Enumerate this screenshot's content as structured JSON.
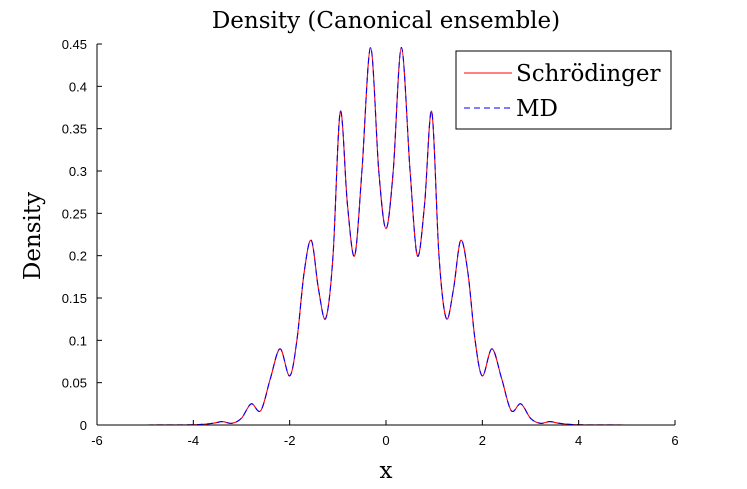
{
  "chart_data": {
    "type": "line",
    "title": "Density (Canonical ensemble)",
    "xlabel": "x",
    "ylabel": "Density",
    "xlim": [
      -6,
      6
    ],
    "ylim": [
      0,
      0.45
    ],
    "xticks": [
      "-6",
      "-4",
      "-2",
      "0",
      "2",
      "4",
      "6"
    ],
    "yticks": [
      "0",
      "0.05",
      "0.1",
      "0.15",
      "0.2",
      "0.25",
      "0.3",
      "0.35",
      "0.4",
      "0.45"
    ],
    "legend_position": "top-right",
    "series": [
      {
        "name": "Schrödinger",
        "color": "#ff0000",
        "style": "solid",
        "x": [
          -6,
          -5,
          -4,
          -3.6,
          -3.4,
          -3.2,
          -3.0,
          -2.8,
          -2.6,
          -2.4,
          -2.2,
          -2.0,
          -1.85,
          -1.7,
          -1.55,
          -1.4,
          -1.25,
          -1.1,
          -0.95,
          -0.8,
          -0.65,
          -0.5,
          -0.32,
          -0.15,
          0,
          0.15,
          0.32,
          0.5,
          0.65,
          0.8,
          0.95,
          1.1,
          1.25,
          1.4,
          1.55,
          1.7,
          1.85,
          2.0,
          2.2,
          2.4,
          2.6,
          2.8,
          3.0,
          3.2,
          3.4,
          3.6,
          4,
          5,
          6
        ],
        "y": [
          0,
          0,
          0.0003,
          0.002,
          0.004,
          0.002,
          0.008,
          0.025,
          0.017,
          0.055,
          0.09,
          0.058,
          0.1,
          0.18,
          0.218,
          0.16,
          0.126,
          0.2,
          0.37,
          0.26,
          0.2,
          0.3,
          0.446,
          0.3,
          0.232,
          0.3,
          0.446,
          0.3,
          0.2,
          0.26,
          0.37,
          0.2,
          0.126,
          0.16,
          0.218,
          0.18,
          0.1,
          0.058,
          0.09,
          0.055,
          0.017,
          0.025,
          0.008,
          0.002,
          0.004,
          0.002,
          0.0003,
          0,
          0
        ]
      },
      {
        "name": "MD",
        "color": "#0000ff",
        "style": "dashed",
        "x": [
          -6,
          -5,
          -4,
          -3.6,
          -3.4,
          -3.2,
          -3.0,
          -2.8,
          -2.6,
          -2.4,
          -2.2,
          -2.0,
          -1.85,
          -1.7,
          -1.55,
          -1.4,
          -1.25,
          -1.1,
          -0.95,
          -0.8,
          -0.65,
          -0.5,
          -0.32,
          -0.15,
          0,
          0.15,
          0.32,
          0.5,
          0.65,
          0.8,
          0.95,
          1.1,
          1.25,
          1.4,
          1.55,
          1.7,
          1.85,
          2.0,
          2.2,
          2.4,
          2.6,
          2.8,
          3.0,
          3.2,
          3.4,
          3.6,
          4,
          5,
          6
        ],
        "y": [
          0,
          0,
          0.0003,
          0.002,
          0.004,
          0.002,
          0.008,
          0.025,
          0.017,
          0.055,
          0.09,
          0.058,
          0.1,
          0.18,
          0.218,
          0.16,
          0.126,
          0.2,
          0.37,
          0.26,
          0.2,
          0.3,
          0.446,
          0.3,
          0.232,
          0.3,
          0.446,
          0.3,
          0.2,
          0.26,
          0.37,
          0.2,
          0.126,
          0.16,
          0.218,
          0.18,
          0.1,
          0.058,
          0.09,
          0.055,
          0.017,
          0.025,
          0.008,
          0.002,
          0.004,
          0.002,
          0.0003,
          0,
          0
        ]
      }
    ]
  }
}
